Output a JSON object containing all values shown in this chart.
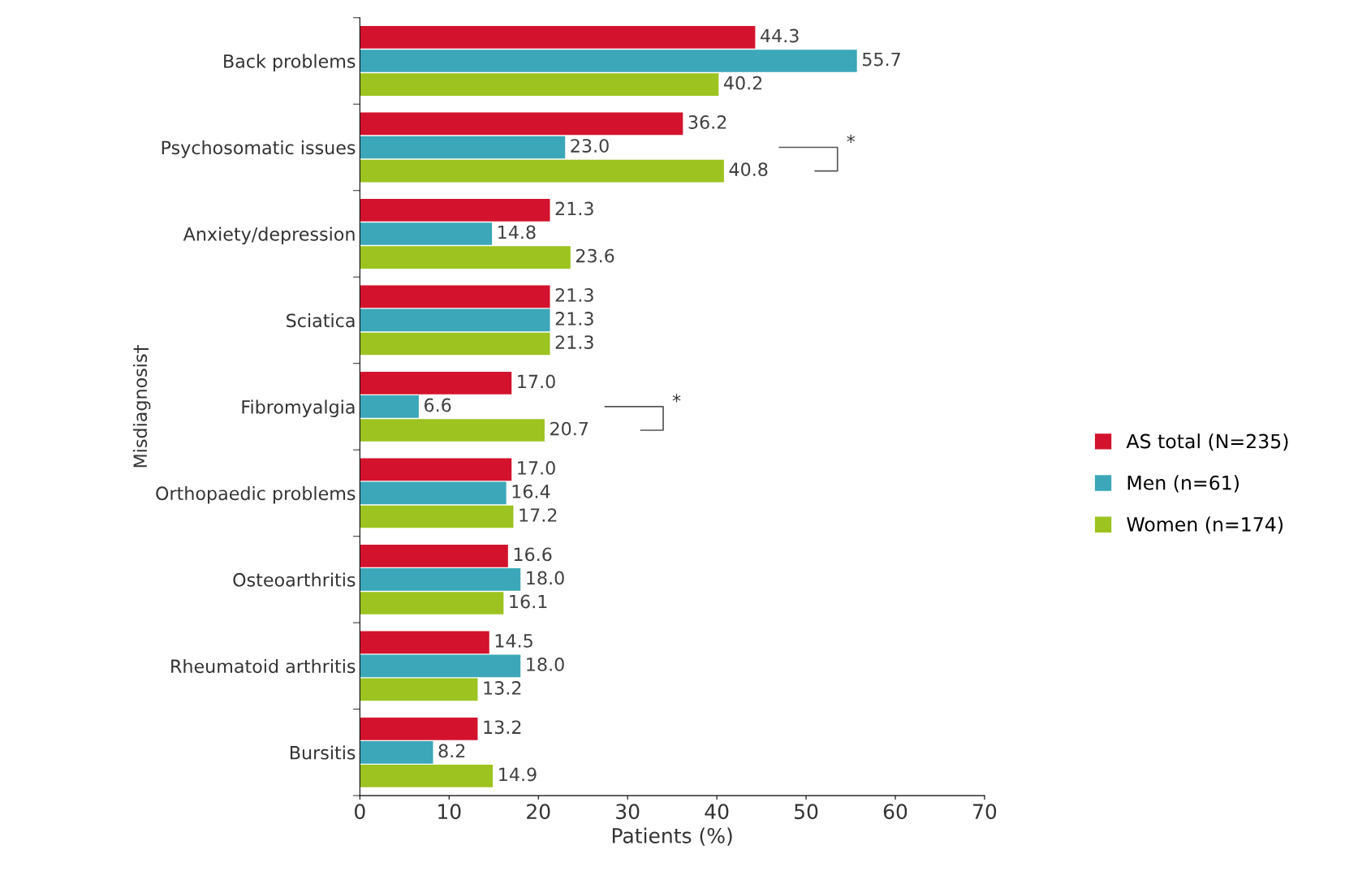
{
  "chart_data": {
    "type": "bar",
    "orientation": "horizontal",
    "xlabel": "Patients (%)",
    "ylabel": "Misdiagnosis†",
    "categories": [
      "Back problems",
      "Psychosomatic issues",
      "Anxiety/depression",
      "Sciatica",
      "Fibromyalgia",
      "Orthopaedic problems",
      "Osteoarthritis",
      "Rheumatoid arthritis",
      "Bursitis"
    ],
    "series": [
      {
        "name": "AS total (N=235)",
        "color": "#d3132d",
        "values": [
          44.3,
          36.2,
          21.3,
          21.3,
          17,
          17,
          16.6,
          14.5,
          13.2
        ],
        "value_labels": [
          "44.3",
          "36.2",
          "21.3",
          "21.3",
          "17.0",
          "17.0",
          "16.6",
          "14.5",
          "13.2"
        ]
      },
      {
        "name": "Men (n=61)",
        "color": "#3ba7b8",
        "values": [
          55.7,
          23,
          14.8,
          21.3,
          6.6,
          16.4,
          18,
          18,
          8.2
        ],
        "value_labels": [
          "55.7",
          "23.0",
          "14.8",
          "21.3",
          "6.6",
          "16.4",
          "18.0",
          "18.0",
          "8.2"
        ]
      },
      {
        "name": "Women (n=174)",
        "color": "#9cc320",
        "values": [
          40.2,
          40.8,
          23.6,
          21.3,
          20.7,
          17.2,
          16.1,
          13.2,
          14.9
        ],
        "value_labels": [
          "40.2",
          "40.8",
          "23.6",
          "21.3",
          "20.7",
          "17.2",
          "16.1",
          "13.2",
          "14.9"
        ]
      }
    ],
    "xlim": [
      0,
      70
    ],
    "xticks": [
      0,
      10,
      20,
      30,
      40,
      50,
      60,
      70
    ],
    "grid": false,
    "legend": "right",
    "annotations": [
      "*",
      "*"
    ]
  }
}
